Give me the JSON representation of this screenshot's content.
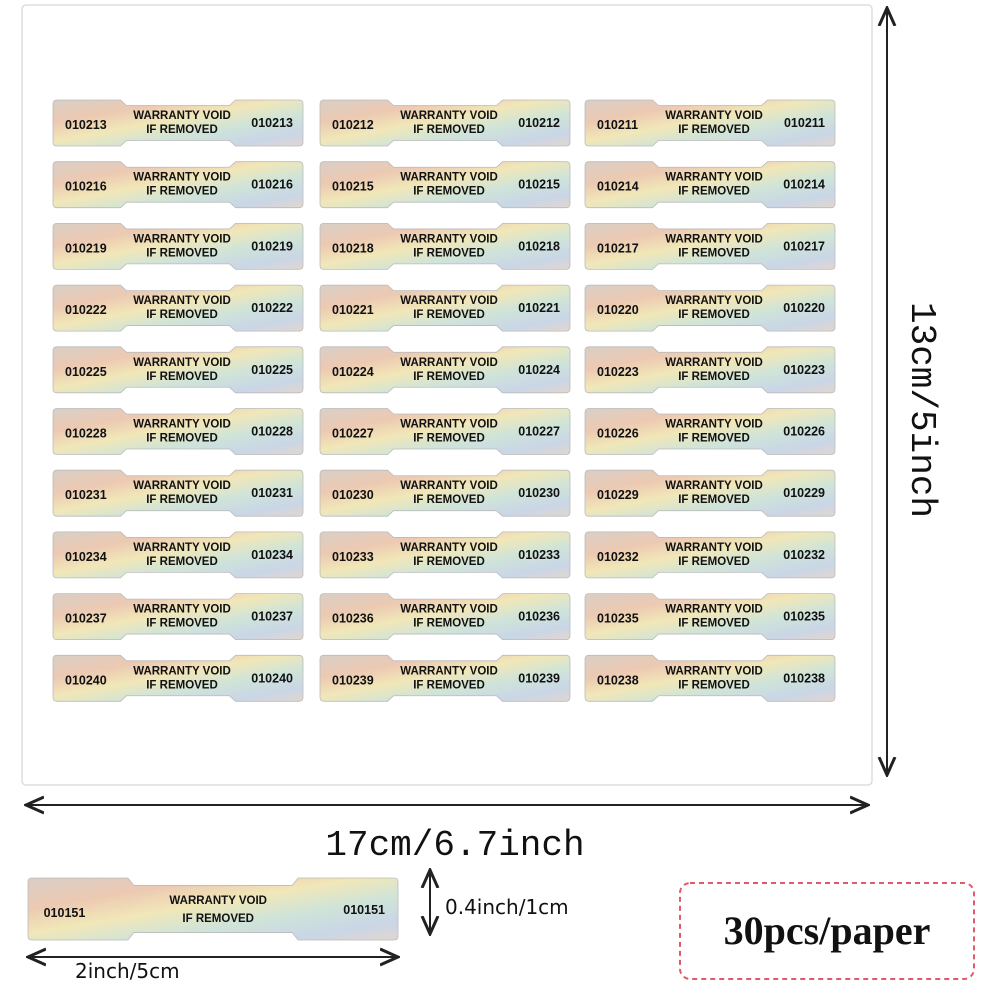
{
  "sheet": {
    "rows": [
      [
        "010213",
        "010212",
        "010211"
      ],
      [
        "010216",
        "010215",
        "010214"
      ],
      [
        "010219",
        "010218",
        "010217"
      ],
      [
        "010222",
        "010221",
        "010220"
      ],
      [
        "010225",
        "010224",
        "010223"
      ],
      [
        "010228",
        "010227",
        "010226"
      ],
      [
        "010231",
        "010230",
        "010229"
      ],
      [
        "010234",
        "010233",
        "010232"
      ],
      [
        "010237",
        "010236",
        "010235"
      ],
      [
        "010240",
        "010239",
        "010238"
      ]
    ]
  },
  "sticker_text": {
    "line1": "WARRANTY VOID",
    "line2": "IF REMOVED"
  },
  "sheet_width": "17cm/6.7inch",
  "sheet_height": "13cm/5inch",
  "sample": {
    "number": "010151",
    "height": "0.4inch/1cm",
    "width": "2inch/5cm"
  },
  "badge": "30pcs/paper"
}
